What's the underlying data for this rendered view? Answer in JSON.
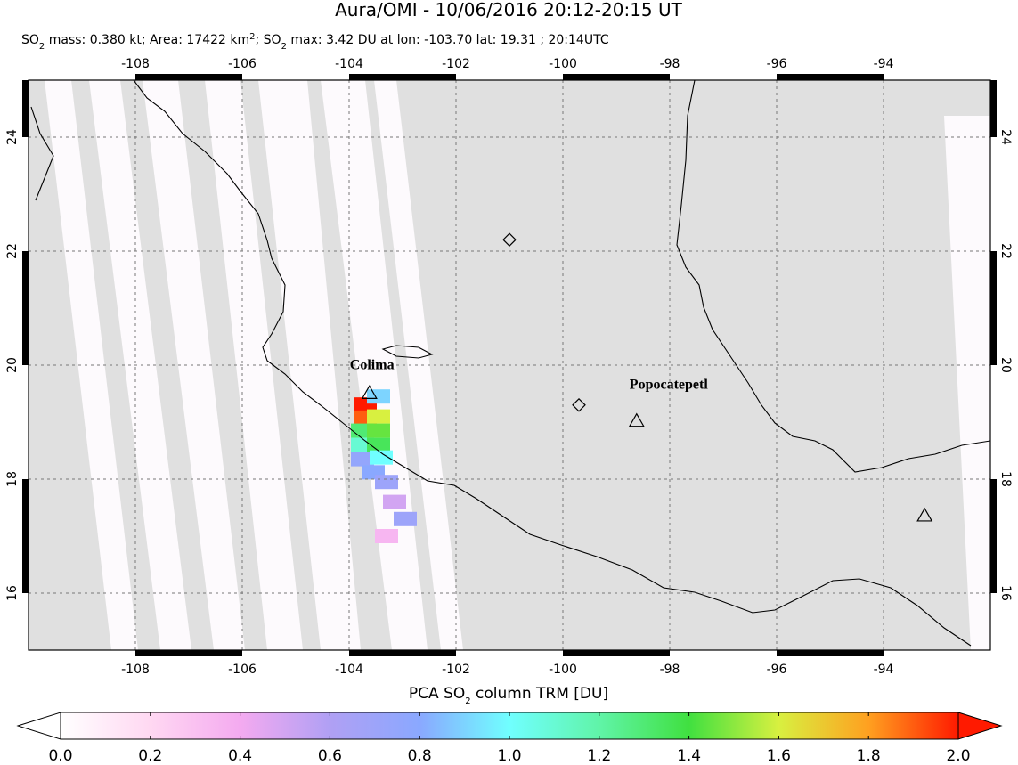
{
  "header": {
    "title": "Aura/OMI - 10/06/2016 20:12-20:15 UT",
    "subtitle_parts": [
      "SO",
      "2",
      " mass: 0.380 kt; Area: 17422 km",
      "2",
      "; SO",
      "2",
      " max: 3.42 DU at lon: -103.70 lat: 19.31 ; 20:14UTC"
    ]
  },
  "map": {
    "lonlim": [
      -110,
      -92
    ],
    "latlim": [
      15,
      25
    ],
    "lonticks": [
      -108,
      -106,
      -104,
      -102,
      -100,
      -98,
      -96,
      -94
    ],
    "latticks": [
      16,
      18,
      20,
      22,
      24
    ],
    "volcanoes": [
      {
        "name": "Colima",
        "lon": -103.62,
        "lat": 19.51
      },
      {
        "name": "Popocatepetl",
        "lon": -98.62,
        "lat": 19.02
      }
    ],
    "other_triangles": [
      {
        "lon": -93.23,
        "lat": 17.36
      }
    ],
    "diamonds": [
      {
        "lon": -101.0,
        "lat": 22.2
      },
      {
        "lon": -99.7,
        "lat": 19.3
      }
    ],
    "pixels": [
      {
        "lon": -103.7,
        "lat": 19.31,
        "value": 3.42
      },
      {
        "lon": -103.45,
        "lat": 19.45,
        "value": 0.9
      },
      {
        "lon": -103.7,
        "lat": 19.08,
        "value": 1.9
      },
      {
        "lon": -103.45,
        "lat": 19.1,
        "value": 1.6
      },
      {
        "lon": -103.75,
        "lat": 18.85,
        "value": 1.3
      },
      {
        "lon": -103.45,
        "lat": 18.85,
        "value": 1.45
      },
      {
        "lon": -103.75,
        "lat": 18.6,
        "value": 1.1
      },
      {
        "lon": -103.45,
        "lat": 18.6,
        "value": 1.35
      },
      {
        "lon": -103.75,
        "lat": 18.35,
        "value": 0.75
      },
      {
        "lon": -103.4,
        "lat": 18.38,
        "value": 1.0
      },
      {
        "lon": -103.55,
        "lat": 18.12,
        "value": 0.8
      },
      {
        "lon": -103.3,
        "lat": 17.95,
        "value": 0.7
      },
      {
        "lon": -103.15,
        "lat": 17.6,
        "value": 0.5
      },
      {
        "lon": -102.95,
        "lat": 17.3,
        "value": 0.7
      },
      {
        "lon": -103.3,
        "lat": 17.0,
        "value": 0.35
      }
    ]
  },
  "colorbar": {
    "title_parts": [
      "PCA SO",
      "2",
      " column TRM [DU]"
    ],
    "lim": [
      0,
      2
    ],
    "ticks": [
      {
        "value": 0,
        "label": "0.0"
      },
      0.2,
      0.4,
      0.6,
      0.8,
      {
        "value": 1,
        "label": "1.0"
      },
      1.2,
      1.4,
      1.6,
      1.8,
      {
        "value": 2,
        "label": "2.0"
      }
    ]
  }
}
